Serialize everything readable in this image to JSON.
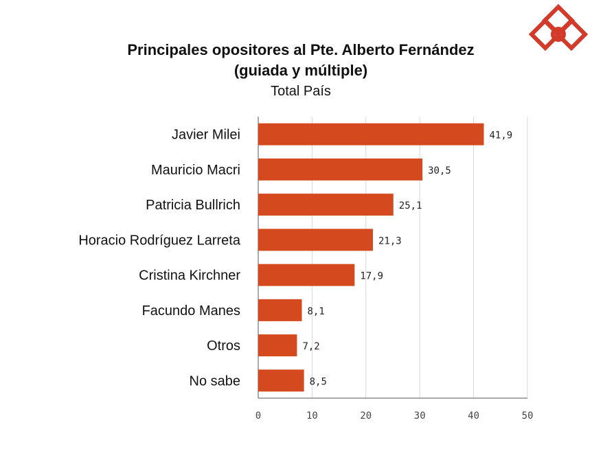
{
  "colors": {
    "bar": "#D44A1E",
    "logo": "#D23A2A",
    "grid": "#D9D9D9",
    "axis": "#555555"
  },
  "logo": {
    "icon": "interlocked-diamonds-logo"
  },
  "chart_data": {
    "type": "bar",
    "orientation": "horizontal",
    "title": "Principales opositores al Pte. Alberto Fernández",
    "subtitle": "(guiada y múltiple)",
    "scope": "Total País",
    "categories": [
      "Javier Milei",
      "Mauricio Macri",
      "Patricia Bullrich",
      "Horacio Rodríguez Larreta",
      "Cristina Kirchner",
      "Facundo Manes",
      "Otros",
      "No sabe"
    ],
    "values": [
      41.9,
      30.5,
      25.1,
      21.3,
      17.9,
      8.1,
      7.2,
      8.5
    ],
    "value_labels": [
      "41,9",
      "30,5",
      "25,1",
      "21,3",
      "17,9",
      "8,1",
      "7,2",
      "8,5"
    ],
    "xlim": [
      0,
      50
    ],
    "xticks": [
      0,
      10,
      20,
      30,
      40,
      50
    ],
    "grid": true,
    "xlabel": "",
    "ylabel": ""
  }
}
